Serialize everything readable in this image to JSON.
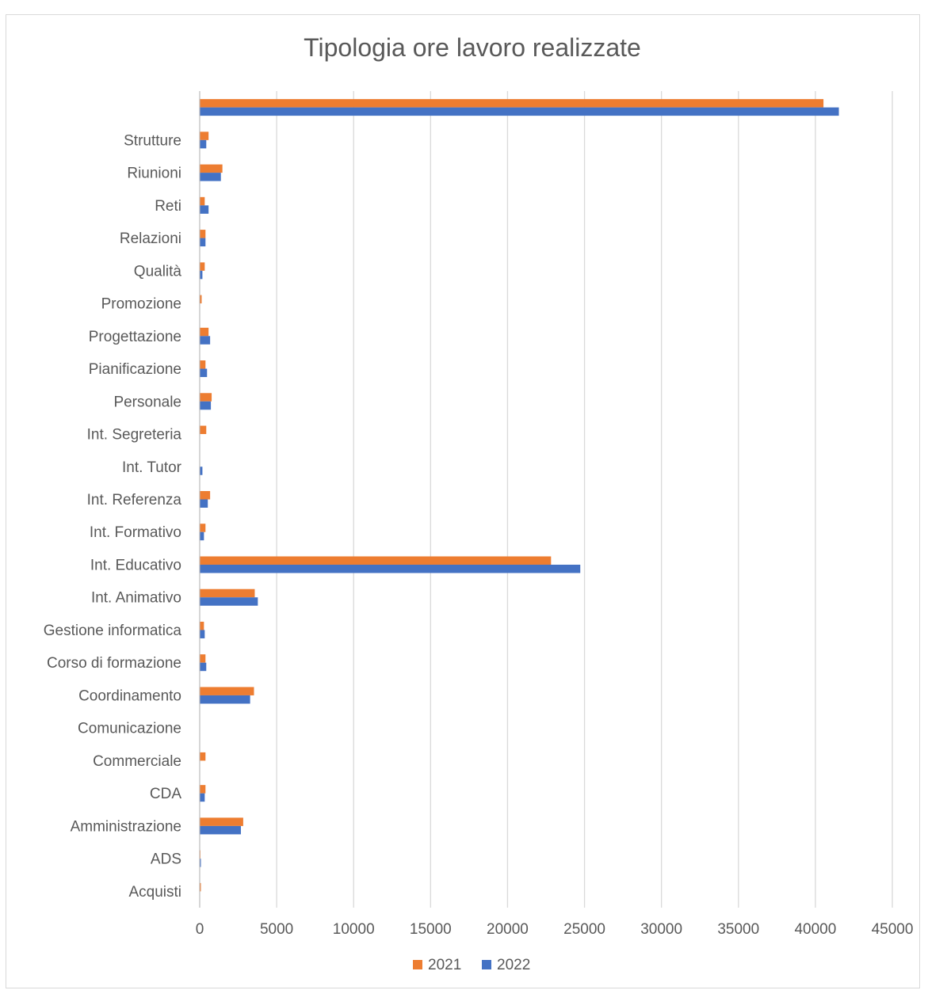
{
  "chart_data": {
    "type": "bar",
    "orientation": "horizontal",
    "title": "Tipologia ore lavoro realizzate",
    "xlabel": "",
    "ylabel": "",
    "xlim": [
      0,
      45000
    ],
    "xticks": [
      0,
      5000,
      10000,
      15000,
      20000,
      25000,
      30000,
      35000,
      40000,
      45000
    ],
    "grid": true,
    "legend": "bottom",
    "categories": [
      "",
      "Strutture",
      "Riunioni",
      "Reti",
      "Relazioni",
      "Qualità",
      "Promozione",
      "Progettazione",
      "Pianificazione",
      "Personale",
      "Int. Segreteria",
      "Int. Tutor",
      "Int. Referenza",
      "Int. Formativo",
      "Int. Educativo",
      "Int. Animativo",
      "Gestione informatica",
      "Corso di formazione",
      "Coordinamento",
      "Comunicazione",
      "Commerciale",
      "CDA",
      "Amministrazione",
      "ADS",
      "Acquisti"
    ],
    "series": [
      {
        "name": "2021",
        "color": "#ED7D31",
        "values": [
          40500,
          550,
          1450,
          300,
          350,
          300,
          100,
          550,
          350,
          750,
          400,
          0,
          650,
          350,
          22800,
          3550,
          250,
          350,
          3500,
          0,
          350,
          350,
          2800,
          20,
          50
        ]
      },
      {
        "name": "2022",
        "color": "#4472C4",
        "values": [
          41500,
          400,
          1350,
          550,
          350,
          150,
          0,
          650,
          450,
          700,
          0,
          150,
          500,
          250,
          24700,
          3750,
          300,
          400,
          3250,
          0,
          0,
          300,
          2650,
          50,
          0
        ]
      }
    ]
  }
}
